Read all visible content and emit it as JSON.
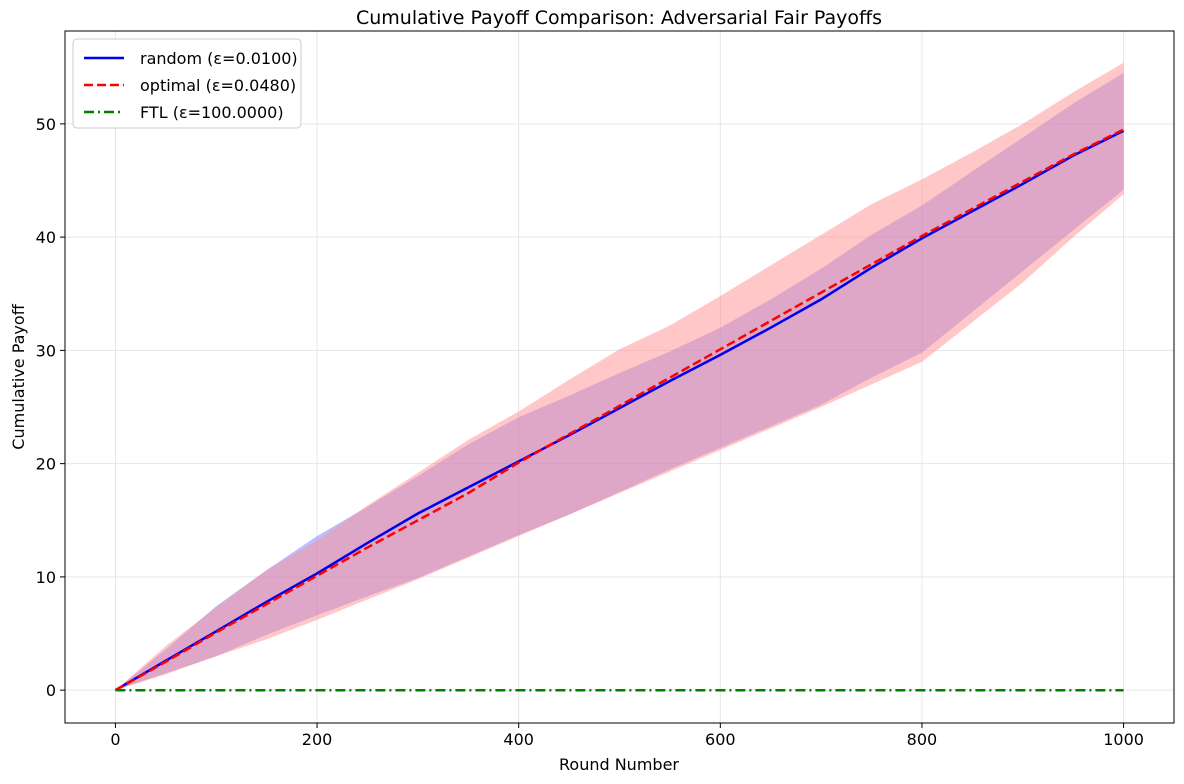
{
  "chart_data": {
    "type": "line",
    "title": "Cumulative Payoff Comparison: Adversarial Fair Payoffs",
    "xlabel": "Round Number",
    "ylabel": "Cumulative Payoff",
    "xlim": [
      -50,
      1050
    ],
    "ylim": [
      -2.9,
      58.2
    ],
    "xticks": [
      0,
      200,
      400,
      600,
      800,
      1000
    ],
    "yticks": [
      0,
      10,
      20,
      30,
      40,
      50
    ],
    "grid": true,
    "legend_position": "top-left",
    "x": [
      0,
      50,
      100,
      150,
      200,
      250,
      300,
      350,
      400,
      450,
      500,
      550,
      600,
      650,
      700,
      750,
      800,
      850,
      900,
      950,
      1000
    ],
    "series": [
      {
        "name": "random (ε=0.0100)",
        "color": "#0000ee",
        "line_style": "solid",
        "values": [
          0,
          2.6,
          5.2,
          7.8,
          10.3,
          13.0,
          15.6,
          17.9,
          20.2,
          22.5,
          24.9,
          27.3,
          29.6,
          32.0,
          34.5,
          37.3,
          39.9,
          42.3,
          44.7,
          47.2,
          49.4
        ],
        "band_lower": [
          0,
          1.5,
          3.0,
          4.9,
          6.6,
          8.3,
          9.9,
          11.8,
          13.7,
          15.5,
          17.5,
          19.5,
          21.4,
          23.3,
          25.2,
          27.6,
          29.8,
          33.4,
          37.0,
          40.6,
          44.2
        ],
        "band_upper": [
          0,
          3.6,
          7.4,
          10.6,
          13.6,
          16.2,
          18.9,
          21.7,
          24.1,
          26.0,
          28.0,
          29.9,
          32.0,
          34.5,
          37.2,
          40.2,
          42.8,
          45.8,
          48.8,
          51.8,
          54.5
        ],
        "band_color": "#6a6aff"
      },
      {
        "name": "optimal (ε=0.0480)",
        "color": "#ff0000",
        "line_style": "dashed",
        "values": [
          0,
          2.5,
          5.1,
          7.6,
          10.1,
          12.6,
          15.0,
          17.4,
          20.1,
          22.6,
          25.1,
          27.6,
          30.1,
          32.6,
          35.1,
          37.6,
          40.1,
          42.5,
          44.9,
          47.3,
          49.5
        ],
        "band_lower": [
          0,
          1.4,
          3.0,
          4.5,
          6.2,
          8.0,
          9.8,
          11.7,
          13.6,
          15.5,
          17.4,
          19.3,
          21.2,
          23.1,
          25.0,
          27.0,
          29.0,
          32.5,
          36.0,
          40.0,
          43.8
        ],
        "band_upper": [
          0,
          3.9,
          7.3,
          10.6,
          13.2,
          16.3,
          19.2,
          22.1,
          24.6,
          27.4,
          30.1,
          32.2,
          34.8,
          37.5,
          40.2,
          42.9,
          45.1,
          47.5,
          50.0,
          52.8,
          55.4
        ],
        "band_color": "#ff9090"
      },
      {
        "name": "FTL (ε=100.0000)",
        "color": "#008000",
        "line_style": "dashdot",
        "values": [
          0,
          0,
          0,
          0,
          0,
          0,
          0,
          0,
          0,
          0,
          0,
          0,
          0,
          0,
          0,
          0,
          0,
          0,
          0,
          0,
          0
        ],
        "band_color": "#90ee90"
      }
    ]
  }
}
